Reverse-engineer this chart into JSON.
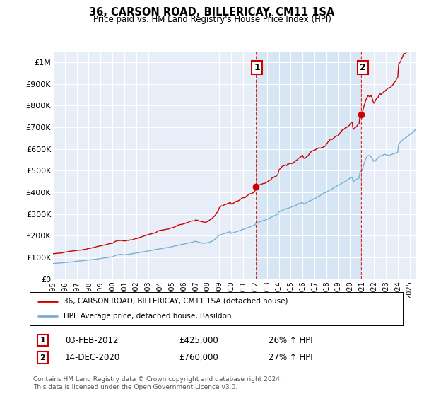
{
  "title": "36, CARSON ROAD, BILLERICAY, CM11 1SA",
  "subtitle": "Price paid vs. HM Land Registry's House Price Index (HPI)",
  "ylim": [
    0,
    1050000
  ],
  "xlim_start": 1995.0,
  "xlim_end": 2025.5,
  "yticks": [
    0,
    100000,
    200000,
    300000,
    400000,
    500000,
    600000,
    700000,
    800000,
    900000,
    1000000
  ],
  "ytick_labels": [
    "£0",
    "£100K",
    "£200K",
    "£300K",
    "£400K",
    "£500K",
    "£600K",
    "£700K",
    "£800K",
    "£900K",
    "£1M"
  ],
  "xtick_labels": [
    "1995",
    "1996",
    "1997",
    "1998",
    "1999",
    "2000",
    "2001",
    "2002",
    "2003",
    "2004",
    "2005",
    "2006",
    "2007",
    "2008",
    "2009",
    "2010",
    "2011",
    "2012",
    "2013",
    "2014",
    "2015",
    "2016",
    "2017",
    "2018",
    "2019",
    "2020",
    "2021",
    "2022",
    "2023",
    "2024",
    "2025"
  ],
  "sale1_x": 2012.08,
  "sale1_y": 425000,
  "sale2_x": 2020.95,
  "sale2_y": 760000,
  "legend_line1": "36, CARSON ROAD, BILLERICAY, CM11 1SA (detached house)",
  "legend_line2": "HPI: Average price, detached house, Basildon",
  "footer": "Contains HM Land Registry data © Crown copyright and database right 2024.\nThis data is licensed under the Open Government Licence v3.0.",
  "line_color_red": "#cc0000",
  "line_color_blue": "#7ab0d4",
  "shade_color": "#d0e4f5",
  "background_color": "#e8eef8",
  "grid_color": "#ffffff",
  "ann1_date": "03-FEB-2012",
  "ann1_price": "£425,000",
  "ann1_hpi": "26% ↑ HPI",
  "ann2_date": "14-DEC-2020",
  "ann2_price": "£760,000",
  "ann2_hpi": "27% ↑ HPI"
}
